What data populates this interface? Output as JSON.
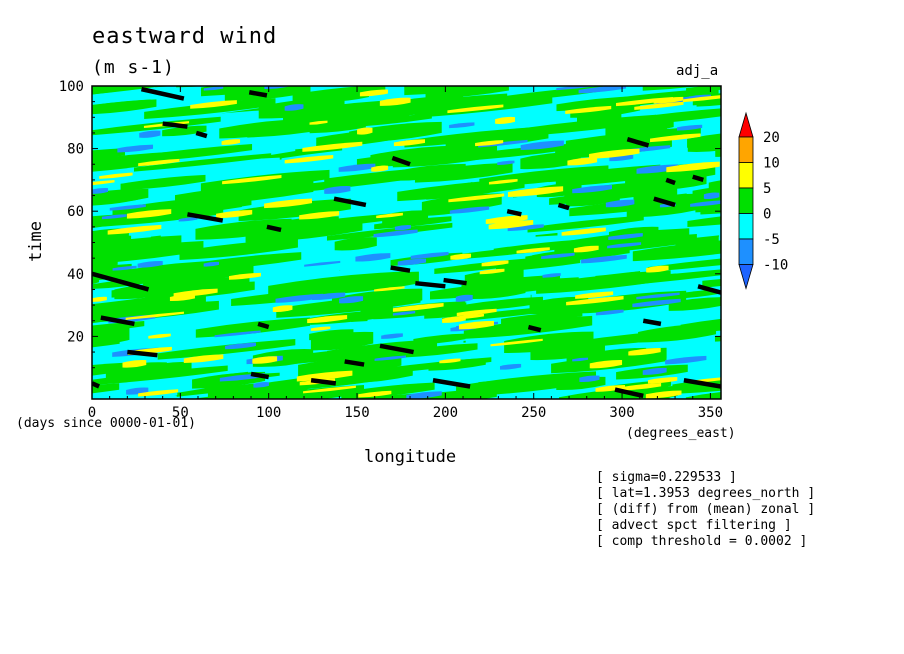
{
  "title": "eastward wind",
  "units": "(m s-1)",
  "tag": "adj_a",
  "annotations": [
    "[ sigma=0.229533 ]",
    "[ lat=1.3953 degrees_north ]",
    "[ (diff) from (mean) zonal ]",
    "[ advect spct filtering ]",
    "[ comp threshold = 0.0002 ]"
  ],
  "chart_data": {
    "type": "heatmap",
    "title": "eastward wind",
    "subtitle": "(m s-1)",
    "xlabel": "longitude",
    "xunits": "(degrees_east)",
    "ylabel": "time",
    "yunits": "(days since 0000-01-01)",
    "xlim": [
      0,
      356
    ],
    "ylim": [
      0,
      100
    ],
    "x_ticks": [
      0,
      50,
      100,
      150,
      200,
      250,
      300,
      350
    ],
    "y_ticks": [
      20,
      40,
      60,
      80,
      100
    ],
    "colorbar": {
      "levels": [
        -10,
        -5,
        0,
        5,
        10,
        20
      ],
      "level_labels": [
        "20",
        "10",
        "5",
        "0",
        "-5",
        "-10"
      ],
      "colors": [
        "#1E90FF",
        "#00FFFF",
        "#00E000",
        "#FFFF00",
        "#FFA500",
        "#FF0000"
      ],
      "min_extend_color": "#1E64FF",
      "max_extend_color": "#FF0000",
      "extend": "both"
    },
    "background_color": "#00E000",
    "features": [
      {
        "kind": "field",
        "x0": 0,
        "t0": 98,
        "x1": 356,
        "t1": 84,
        "level": -5
      },
      {
        "kind": "field",
        "x0": 0,
        "t0": 74,
        "x1": 356,
        "t1": 52,
        "level": 0
      },
      {
        "kind": "field",
        "x0": 0,
        "t0": 50,
        "x1": 356,
        "t1": 26,
        "level": -5
      }
    ],
    "black_streaks": [
      {
        "x": [
          28,
          52
        ],
        "t": [
          99,
          96
        ]
      },
      {
        "x": [
          89,
          99
        ],
        "t": [
          98,
          97
        ]
      },
      {
        "x": [
          40,
          54
        ],
        "t": [
          88,
          87
        ]
      },
      {
        "x": [
          59,
          65
        ],
        "t": [
          85,
          84
        ]
      },
      {
        "x": [
          170,
          180
        ],
        "t": [
          77,
          75
        ]
      },
      {
        "x": [
          303,
          315
        ],
        "t": [
          83,
          81
        ]
      },
      {
        "x": [
          325,
          330
        ],
        "t": [
          70,
          69
        ]
      },
      {
        "x": [
          54,
          74
        ],
        "t": [
          59,
          57
        ]
      },
      {
        "x": [
          137,
          155
        ],
        "t": [
          64,
          62
        ]
      },
      {
        "x": [
          99,
          107
        ],
        "t": [
          55,
          54
        ]
      },
      {
        "x": [
          235,
          243
        ],
        "t": [
          60,
          59
        ]
      },
      {
        "x": [
          264,
          270
        ],
        "t": [
          62,
          61
        ]
      },
      {
        "x": [
          318,
          330
        ],
        "t": [
          64,
          62
        ]
      },
      {
        "x": [
          0,
          32
        ],
        "t": [
          40,
          35
        ]
      },
      {
        "x": [
          169,
          180
        ],
        "t": [
          42,
          41
        ]
      },
      {
        "x": [
          183,
          200
        ],
        "t": [
          37,
          36
        ]
      },
      {
        "x": [
          199,
          212
        ],
        "t": [
          38,
          37
        ]
      },
      {
        "x": [
          5,
          24
        ],
        "t": [
          26,
          24
        ]
      },
      {
        "x": [
          94,
          100
        ],
        "t": [
          24,
          23
        ]
      },
      {
        "x": [
          20,
          37
        ],
        "t": [
          15,
          14
        ]
      },
      {
        "x": [
          143,
          154
        ],
        "t": [
          12,
          11
        ]
      },
      {
        "x": [
          163,
          182
        ],
        "t": [
          17,
          15
        ]
      },
      {
        "x": [
          90,
          100
        ],
        "t": [
          8,
          7
        ]
      },
      {
        "x": [
          124,
          138
        ],
        "t": [
          6,
          5
        ]
      },
      {
        "x": [
          193,
          214
        ],
        "t": [
          6,
          4
        ]
      },
      {
        "x": [
          296,
          312
        ],
        "t": [
          3,
          1
        ]
      },
      {
        "x": [
          335,
          356
        ],
        "t": [
          6,
          4
        ]
      },
      {
        "x": [
          343,
          356
        ],
        "t": [
          36,
          34
        ]
      },
      {
        "x": [
          247,
          254
        ],
        "t": [
          23,
          22
        ]
      },
      {
        "x": [
          312,
          322
        ],
        "t": [
          25,
          24
        ]
      },
      {
        "x": [
          0,
          4
        ],
        "t": [
          5,
          4
        ]
      },
      {
        "x": [
          340,
          346
        ],
        "t": [
          71,
          70
        ]
      }
    ]
  }
}
